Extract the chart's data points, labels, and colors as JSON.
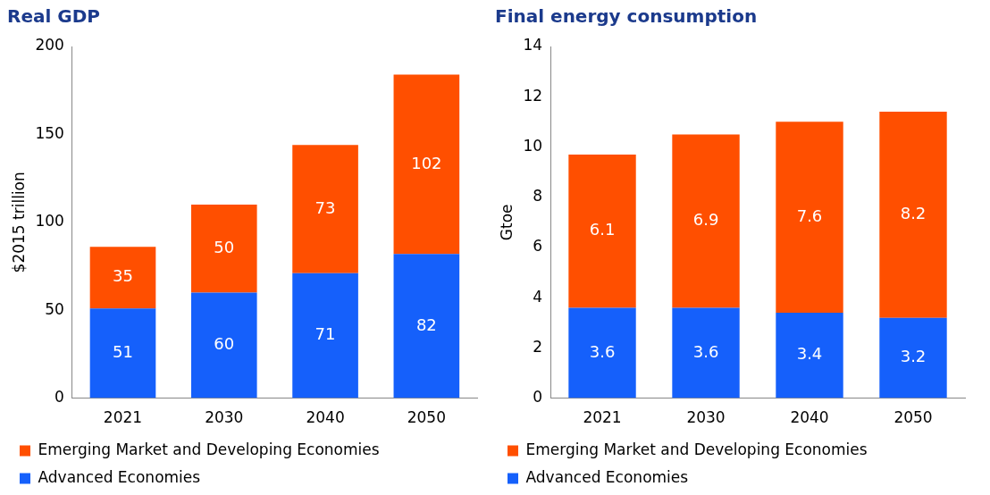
{
  "chart_data": [
    {
      "type": "bar",
      "title": "Real GDP",
      "ylabel": "$2015 trillion",
      "categories": [
        "2021",
        "2030",
        "2040",
        "2050"
      ],
      "stacked": true,
      "ylim": [
        0,
        200
      ],
      "yticks": [
        0,
        50,
        100,
        150,
        200
      ],
      "grid": false,
      "legend": "bottom",
      "data_labels": true,
      "series": [
        {
          "name": "Advanced Economies",
          "color": "#1560fb",
          "values": [
            51,
            60,
            71,
            82
          ]
        },
        {
          "name": "Emerging Market and Developing Economies",
          "color": "#ff4f00",
          "values": [
            35,
            50,
            73,
            102
          ]
        }
      ]
    },
    {
      "type": "bar",
      "title": "Final energy consumption",
      "ylabel": "Gtoe",
      "categories": [
        "2021",
        "2030",
        "2040",
        "2050"
      ],
      "stacked": true,
      "ylim": [
        0,
        14
      ],
      "yticks": [
        0,
        2,
        4,
        6,
        8,
        10,
        12,
        14
      ],
      "grid": false,
      "legend": "bottom",
      "data_labels": true,
      "series": [
        {
          "name": "Advanced Economies",
          "color": "#1560fb",
          "values": [
            3.6,
            3.6,
            3.4,
            3.2
          ]
        },
        {
          "name": "Emerging Market and Developing Economies",
          "color": "#ff4f00",
          "values": [
            6.1,
            6.9,
            7.6,
            8.2
          ]
        }
      ]
    }
  ]
}
